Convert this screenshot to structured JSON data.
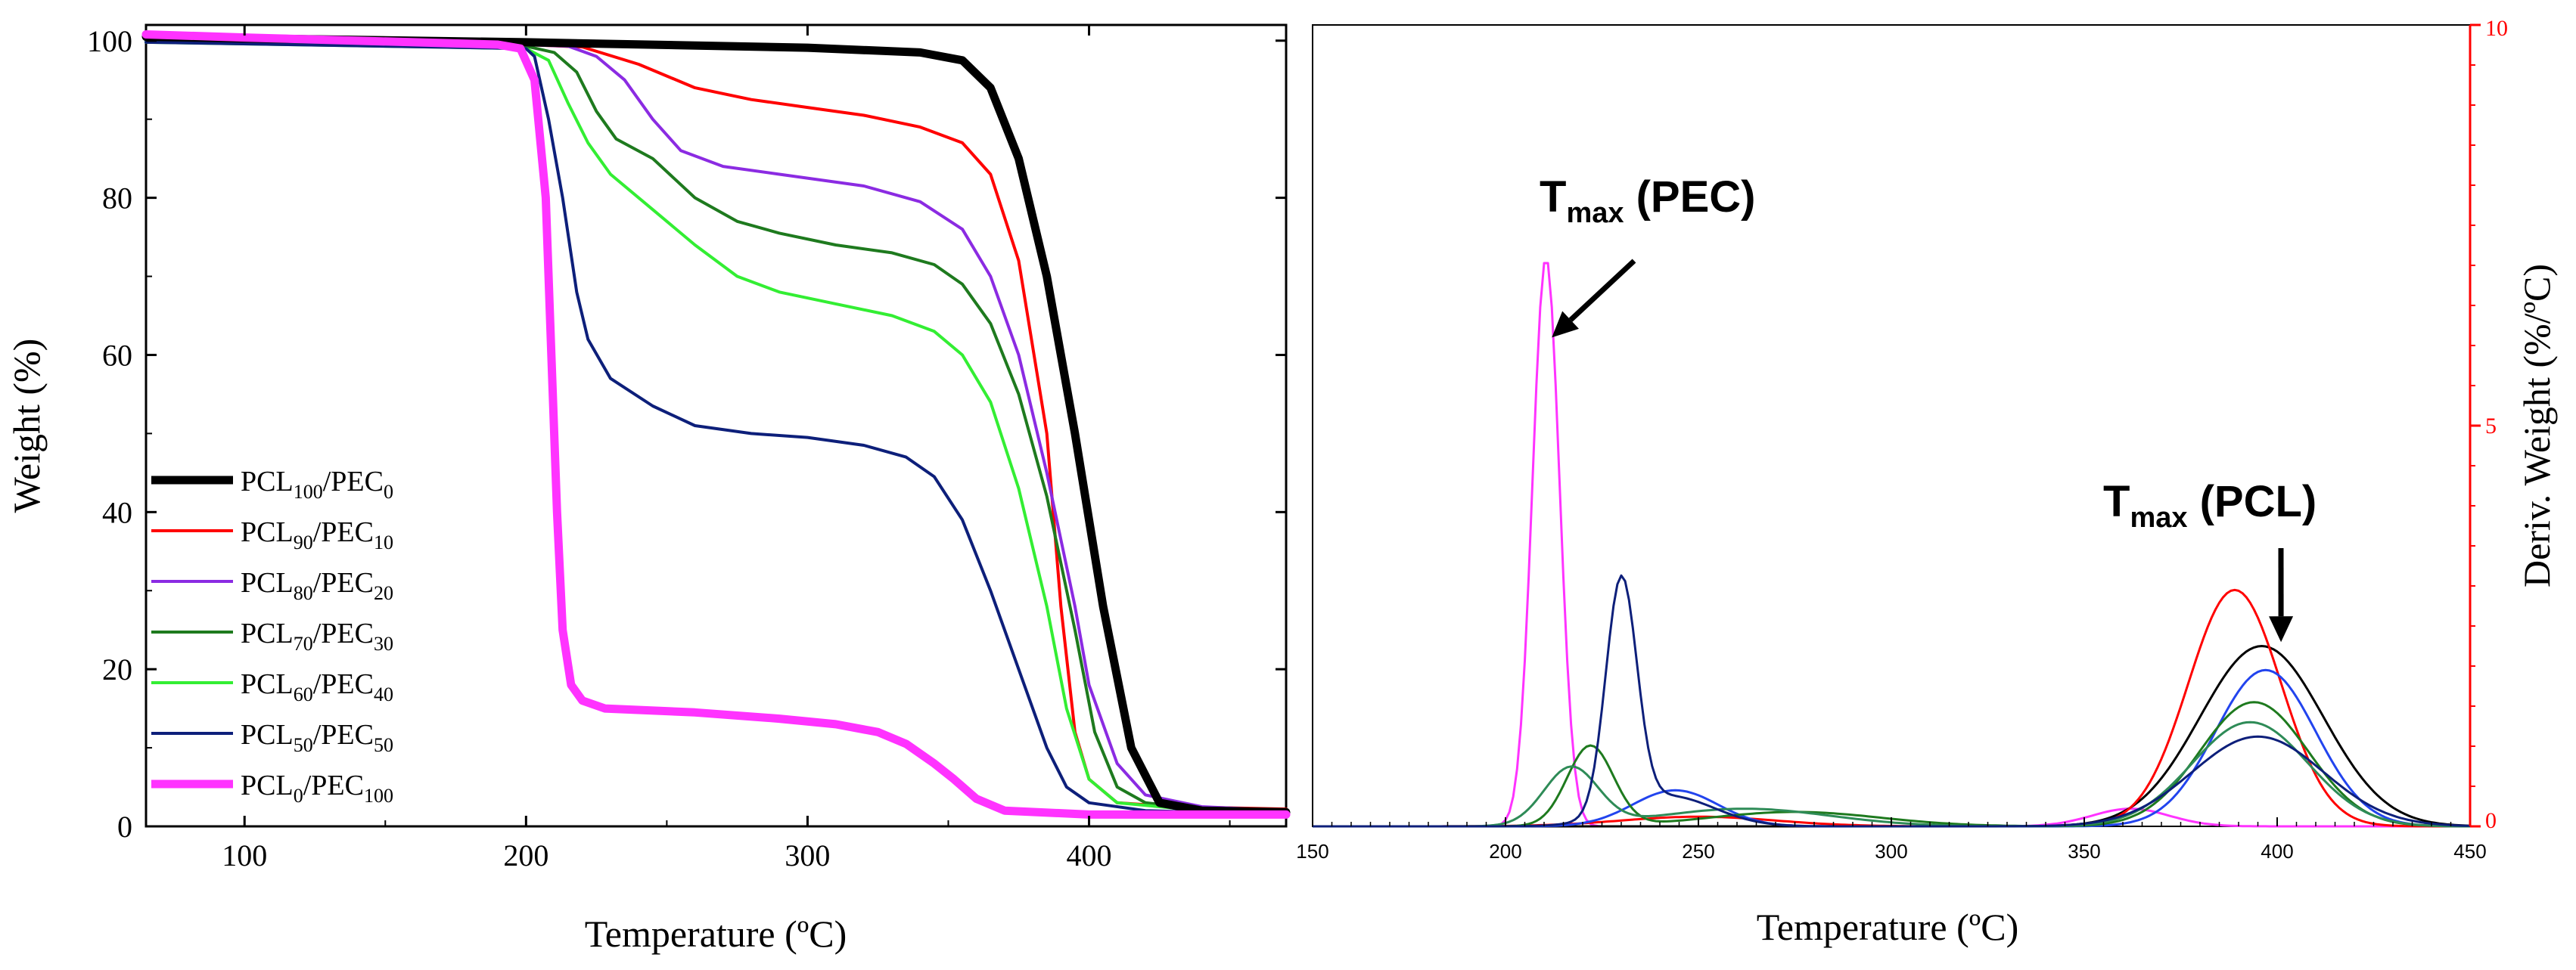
{
  "chart_data": [
    {
      "type": "line",
      "xlabel": "Temperature (ºC)",
      "ylabel": "Weight (%)",
      "xlim": [
        65,
        470
      ],
      "ylim": [
        0,
        102
      ],
      "x_ticks": [
        100,
        200,
        300,
        400
      ],
      "x_tick_labels": [
        "100",
        "200",
        "300",
        "400"
      ],
      "y_ticks": [
        0,
        20,
        40,
        60,
        80,
        100
      ],
      "y_tick_labels": [
        "0",
        "20",
        "40",
        "60",
        "80",
        "100"
      ],
      "legend_position": "lower-left",
      "series": [
        {
          "name": "PCL100/PEC0",
          "base": "PCL",
          "sub1": "100",
          "mid": "/PEC",
          "sub2": "0",
          "color": "#000000",
          "bold": true,
          "points": [
            [
              65,
              100.5
            ],
            [
              100,
              100.3
            ],
            [
              200,
              99.8
            ],
            [
              300,
              99.1
            ],
            [
              340,
              98.5
            ],
            [
              355,
              97.5
            ],
            [
              365,
              94
            ],
            [
              375,
              85
            ],
            [
              385,
              70
            ],
            [
              395,
              50
            ],
            [
              405,
              28
            ],
            [
              415,
              10
            ],
            [
              425,
              3
            ],
            [
              440,
              2
            ],
            [
              470,
              1.8
            ]
          ]
        },
        {
          "name": "PCL90/PEC10",
          "base": "PCL",
          "sub1": "90",
          "mid": "/PEC",
          "sub2": "10",
          "color": "#ff0000",
          "bold": false,
          "points": [
            [
              65,
              100
            ],
            [
              200,
              99.5
            ],
            [
              220,
              99.2
            ],
            [
              240,
              97
            ],
            [
              260,
              94
            ],
            [
              280,
              92.5
            ],
            [
              300,
              91.5
            ],
            [
              320,
              90.5
            ],
            [
              340,
              89
            ],
            [
              355,
              87
            ],
            [
              365,
              83
            ],
            [
              375,
              72
            ],
            [
              385,
              50
            ],
            [
              390,
              28
            ],
            [
              395,
              12
            ],
            [
              400,
              6
            ],
            [
              410,
              3
            ],
            [
              430,
              2.5
            ],
            [
              470,
              2.2
            ]
          ]
        },
        {
          "name": "PCL80/PEC20",
          "base": "PCL",
          "sub1": "80",
          "mid": "/PEC",
          "sub2": "20",
          "color": "#8b2be2",
          "bold": false,
          "points": [
            [
              65,
              100
            ],
            [
              200,
              99.5
            ],
            [
              215,
              99.3
            ],
            [
              225,
              98
            ],
            [
              235,
              95
            ],
            [
              245,
              90
            ],
            [
              255,
              86
            ],
            [
              270,
              84
            ],
            [
              290,
              83
            ],
            [
              320,
              81.5
            ],
            [
              340,
              79.5
            ],
            [
              355,
              76
            ],
            [
              365,
              70
            ],
            [
              375,
              60
            ],
            [
              385,
              45
            ],
            [
              395,
              28
            ],
            [
              400,
              18
            ],
            [
              410,
              8
            ],
            [
              420,
              4
            ],
            [
              440,
              2.5
            ],
            [
              470,
              2
            ]
          ]
        },
        {
          "name": "PCL70/PEC30",
          "base": "PCL",
          "sub1": "70",
          "mid": "/PEC",
          "sub2": "30",
          "color": "#1e7a1e",
          "bold": false,
          "points": [
            [
              65,
              100
            ],
            [
              200,
              99.3
            ],
            [
              210,
              98.5
            ],
            [
              218,
              96
            ],
            [
              225,
              91
            ],
            [
              232,
              87.5
            ],
            [
              245,
              85
            ],
            [
              260,
              80
            ],
            [
              275,
              77
            ],
            [
              290,
              75.5
            ],
            [
              310,
              74
            ],
            [
              330,
              73
            ],
            [
              345,
              71.5
            ],
            [
              355,
              69
            ],
            [
              365,
              64
            ],
            [
              375,
              55
            ],
            [
              385,
              42
            ],
            [
              395,
              25
            ],
            [
              402,
              12
            ],
            [
              410,
              5
            ],
            [
              420,
              3
            ],
            [
              440,
              2.2
            ],
            [
              470,
              2
            ]
          ]
        },
        {
          "name": "PCL60/PEC40",
          "base": "PCL",
          "sub1": "60",
          "mid": "/PEC",
          "sub2": "40",
          "color": "#33ee33",
          "bold": false,
          "points": [
            [
              65,
              99.8
            ],
            [
              200,
              99
            ],
            [
              208,
              97.5
            ],
            [
              215,
              92
            ],
            [
              222,
              87
            ],
            [
              230,
              83
            ],
            [
              245,
              78.5
            ],
            [
              260,
              74
            ],
            [
              275,
              70
            ],
            [
              290,
              68
            ],
            [
              310,
              66.5
            ],
            [
              330,
              65
            ],
            [
              345,
              63
            ],
            [
              355,
              60
            ],
            [
              365,
              54
            ],
            [
              375,
              43
            ],
            [
              385,
              28
            ],
            [
              392,
              15
            ],
            [
              400,
              6
            ],
            [
              410,
              3
            ],
            [
              440,
              2
            ],
            [
              470,
              1.8
            ]
          ]
        },
        {
          "name": "PCL50/PEC50",
          "base": "PCL",
          "sub1": "50",
          "mid": "/PEC",
          "sub2": "50",
          "color": "#0d1f7a",
          "bold": false,
          "points": [
            [
              65,
              99.8
            ],
            [
              200,
              99
            ],
            [
              203,
              98
            ],
            [
              208,
              90
            ],
            [
              213,
              80
            ],
            [
              218,
              68
            ],
            [
              222,
              62
            ],
            [
              230,
              57
            ],
            [
              245,
              53.5
            ],
            [
              260,
              51
            ],
            [
              280,
              50
            ],
            [
              300,
              49.5
            ],
            [
              320,
              48.5
            ],
            [
              335,
              47
            ],
            [
              345,
              44.5
            ],
            [
              355,
              39
            ],
            [
              365,
              30
            ],
            [
              375,
              20
            ],
            [
              385,
              10
            ],
            [
              392,
              5
            ],
            [
              400,
              3
            ],
            [
              420,
              2
            ],
            [
              470,
              1.5
            ]
          ]
        },
        {
          "name": "PCL0/PEC100",
          "base": "PCL",
          "sub1": "0",
          "mid": "/PEC",
          "sub2": "100",
          "color": "#ff33ff",
          "bold": true,
          "points": [
            [
              65,
              100.8
            ],
            [
              100,
              100.4
            ],
            [
              190,
              99.5
            ],
            [
              198,
              99
            ],
            [
              203,
              95
            ],
            [
              207,
              80
            ],
            [
              209,
              60
            ],
            [
              211,
              40
            ],
            [
              213,
              25
            ],
            [
              216,
              18
            ],
            [
              220,
              16
            ],
            [
              228,
              15
            ],
            [
              260,
              14.5
            ],
            [
              290,
              13.7
            ],
            [
              310,
              13
            ],
            [
              325,
              12
            ],
            [
              335,
              10.5
            ],
            [
              345,
              8
            ],
            [
              352,
              6
            ],
            [
              360,
              3.5
            ],
            [
              370,
              2
            ],
            [
              400,
              1.5
            ],
            [
              470,
              1.5
            ]
          ]
        }
      ]
    },
    {
      "type": "line",
      "xlabel": "Temperature (ºC)",
      "ylabel": "Deriv. Weight (%/ºC)",
      "xlim": [
        150,
        450
      ],
      "ylim": [
        0,
        10
      ],
      "x_ticks": [
        150,
        200,
        250,
        300,
        350,
        400,
        450
      ],
      "x_tick_labels": [
        "150",
        "200",
        "250",
        "300",
        "350",
        "400",
        "450"
      ],
      "y_ticks": [
        0,
        5,
        10
      ],
      "y_tick_labels": [
        "0",
        "5",
        "10"
      ],
      "annotations": [
        {
          "base": "T",
          "sub": "max",
          "rest": " (PEC)",
          "arrow_to": [
            212,
            6.1
          ]
        },
        {
          "base": "T",
          "sub": "max",
          "rest": " (PCL)",
          "arrow_to": [
            401,
            2.3
          ]
        }
      ],
      "series": [
        {
          "name": "PCL0/PEC100",
          "color": "#ff33ff",
          "peaks": [
            [
              210.5,
              7.1,
              3.5
            ],
            [
              362,
              0.22,
              10
            ]
          ]
        },
        {
          "name": "PCL100/PEC0",
          "color": "#000000",
          "peaks": [
            [
              396,
              2.25,
              16
            ]
          ]
        },
        {
          "name": "PCL90/PEC10",
          "color": "#ff0000",
          "peaks": [
            [
              389,
              2.95,
              12
            ],
            [
              250,
              0.12,
              20
            ]
          ]
        },
        {
          "name": "PCL80/PEC20",
          "color": "#2244ee",
          "peaks": [
            [
              397,
              1.95,
              13
            ],
            [
              244,
              0.45,
              11
            ]
          ]
        },
        {
          "name": "PCL70/PEC30",
          "color": "#1e7a1e",
          "peaks": [
            [
              394,
              1.55,
              14
            ],
            [
              222,
              1.0,
              6
            ],
            [
              275,
              0.18,
              22
            ]
          ]
        },
        {
          "name": "PCL60/PEC40",
          "color": "#2e8b57",
          "peaks": [
            [
              393,
              1.3,
              15
            ],
            [
              217,
              0.72,
              7
            ],
            [
              262,
              0.22,
              22
            ]
          ]
        },
        {
          "name": "PCL50/PEC50",
          "color": "#0d1f7a",
          "peaks": [
            [
              395,
              1.12,
              17
            ],
            [
              230,
              2.9,
              4
            ],
            [
              242,
              0.38,
              12
            ]
          ]
        }
      ]
    }
  ]
}
